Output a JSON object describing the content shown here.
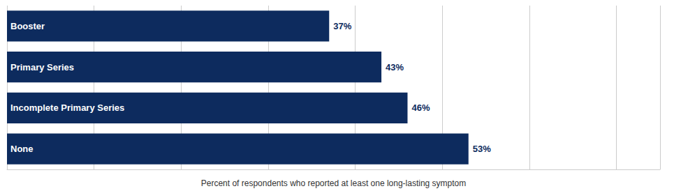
{
  "chart_data": {
    "type": "bar",
    "orientation": "horizontal",
    "categories": [
      "None",
      "Incomplete Primary Series",
      "Primary Series",
      "Booster"
    ],
    "values": [
      53,
      46,
      43,
      37
    ],
    "value_labels": [
      "53%",
      "46%",
      "43%",
      "37%"
    ],
    "data_labels": true,
    "color": "#0d2b5e",
    "xlabel": "Percent of respondents who reported at least one long-lasting symptom",
    "xlim": [
      0,
      75
    ],
    "xticks": [
      0,
      10,
      20,
      30,
      40,
      50,
      60,
      70
    ],
    "grid": true,
    "tick_labels": false
  }
}
